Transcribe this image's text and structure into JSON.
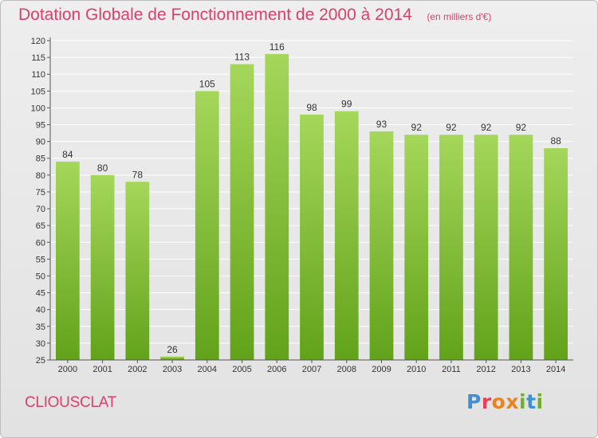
{
  "header": {
    "title": "Dotation Globale de Fonctionnement de 2000 à 2014",
    "unit": "(en milliers d'€)"
  },
  "footer": {
    "commune": "CLIOUSCLAT",
    "logo": "Proxiti"
  },
  "colors": {
    "bar_top": "#a5d75a",
    "bar_bottom": "#62a21a",
    "accent": "#d8416c",
    "grid": "#ffffff"
  },
  "chart_data": {
    "type": "bar",
    "title": "Dotation Globale de Fonctionnement de 2000 à 2014",
    "categories": [
      "2000",
      "2001",
      "2002",
      "2003",
      "2004",
      "2005",
      "2006",
      "2007",
      "2008",
      "2009",
      "2010",
      "2011",
      "2012",
      "2013",
      "2014"
    ],
    "values": [
      84,
      80,
      78,
      26,
      105,
      113,
      116,
      98,
      99,
      93,
      92,
      92,
      92,
      92,
      88
    ],
    "data_labels": [
      "84",
      "80",
      "78",
      "26",
      "105",
      "113",
      "116",
      "98",
      "99",
      "93",
      "92",
      "92",
      "92",
      "92",
      "88"
    ],
    "ylim": [
      25,
      120
    ],
    "yticks": [
      25,
      30,
      35,
      40,
      45,
      50,
      55,
      60,
      65,
      70,
      75,
      80,
      85,
      90,
      95,
      100,
      105,
      110,
      115,
      120
    ],
    "grid": true,
    "legend": "none"
  }
}
